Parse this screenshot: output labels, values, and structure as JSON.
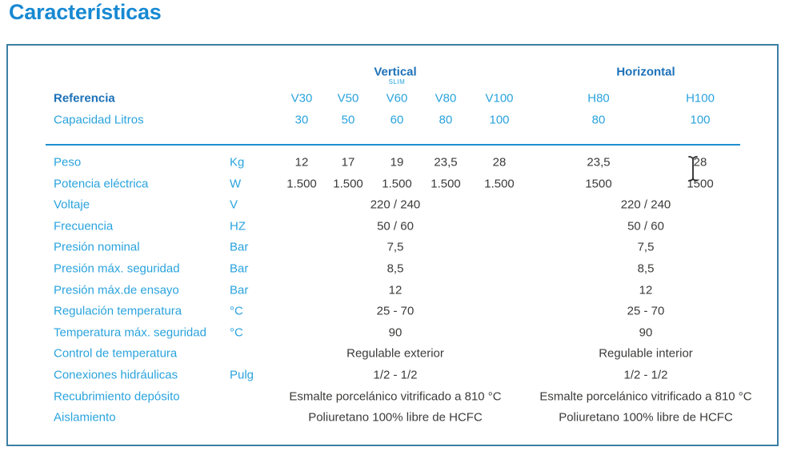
{
  "page_title": "Características",
  "colors": {
    "title_blue": "#1789d2",
    "header_blue": "#1d71b8",
    "label_blue": "#2aa3dd",
    "value_dark": "#3b3b3a",
    "card_border": "#3c7fa5",
    "separator_blue": "#1e8fd0"
  },
  "table": {
    "group_headers": [
      {
        "label": "Vertical"
      },
      {
        "label": "Horizontal"
      }
    ],
    "reference_row": {
      "label": "Referencia",
      "models": [
        {
          "name": "V30"
        },
        {
          "name": "V50"
        },
        {
          "name": "V60",
          "tag": "SLIM"
        },
        {
          "name": "V80"
        },
        {
          "name": "V100"
        },
        {
          "name": "H80"
        },
        {
          "name": "H100"
        }
      ]
    },
    "capacity_row": {
      "label": "Capacidad Litros",
      "values": [
        "30",
        "50",
        "60",
        "80",
        "100",
        "80",
        "100"
      ]
    },
    "rows": [
      {
        "label": "Peso",
        "unit": "Kg",
        "type": "per-column",
        "values": [
          "12",
          "17",
          "19",
          "23,5",
          "28",
          "23,5",
          "28"
        ]
      },
      {
        "label": "Potencia eléctrica",
        "unit": "W",
        "type": "per-column",
        "values": [
          "1.500",
          "1.500",
          "1.500",
          "1.500",
          "1.500",
          "1500",
          "1500"
        ]
      },
      {
        "label": "Voltaje",
        "unit": "V",
        "type": "merged",
        "vertical": "220 / 240",
        "horizontal": "220 / 240"
      },
      {
        "label": "Frecuencia",
        "unit": "HZ",
        "type": "merged",
        "vertical": "50 / 60",
        "horizontal": "50 / 60"
      },
      {
        "label": "Presión nominal",
        "unit": "Bar",
        "type": "merged",
        "vertical": "7,5",
        "horizontal": "7,5"
      },
      {
        "label": "Presión máx. seguridad",
        "unit": "Bar",
        "type": "merged",
        "vertical": "8,5",
        "horizontal": "8,5"
      },
      {
        "label": "Presión máx.de ensayo",
        "unit": "Bar",
        "type": "merged",
        "vertical": "12",
        "horizontal": "12"
      },
      {
        "label": "Regulación temperatura",
        "unit": "°C",
        "type": "merged",
        "vertical": "25 - 70",
        "horizontal": "25 - 70"
      },
      {
        "label": "Temperatura máx. seguridad",
        "unit": "°C",
        "type": "merged",
        "vertical": "90",
        "horizontal": "90"
      },
      {
        "label": "Control de temperatura",
        "unit": "",
        "type": "merged",
        "vertical": "Regulable exterior",
        "horizontal": "Regulable interior"
      },
      {
        "label": "Conexiones hidráulicas",
        "unit": "Pulg",
        "type": "merged",
        "vertical": "1/2 - 1/2",
        "horizontal": "1/2 - 1/2"
      },
      {
        "label": "Recubrimiento depósito",
        "unit": "",
        "type": "merged",
        "vertical": "Esmalte porcelánico vitrificado a 810 °C",
        "horizontal": "Esmalte porcelánico vitrificado a 810 °C"
      },
      {
        "label": "Aislamiento",
        "unit": "",
        "type": "merged",
        "vertical": "Poliuretano 100% libre de HCFC",
        "horizontal": "Poliuretano 100% libre de HCFC"
      }
    ]
  }
}
